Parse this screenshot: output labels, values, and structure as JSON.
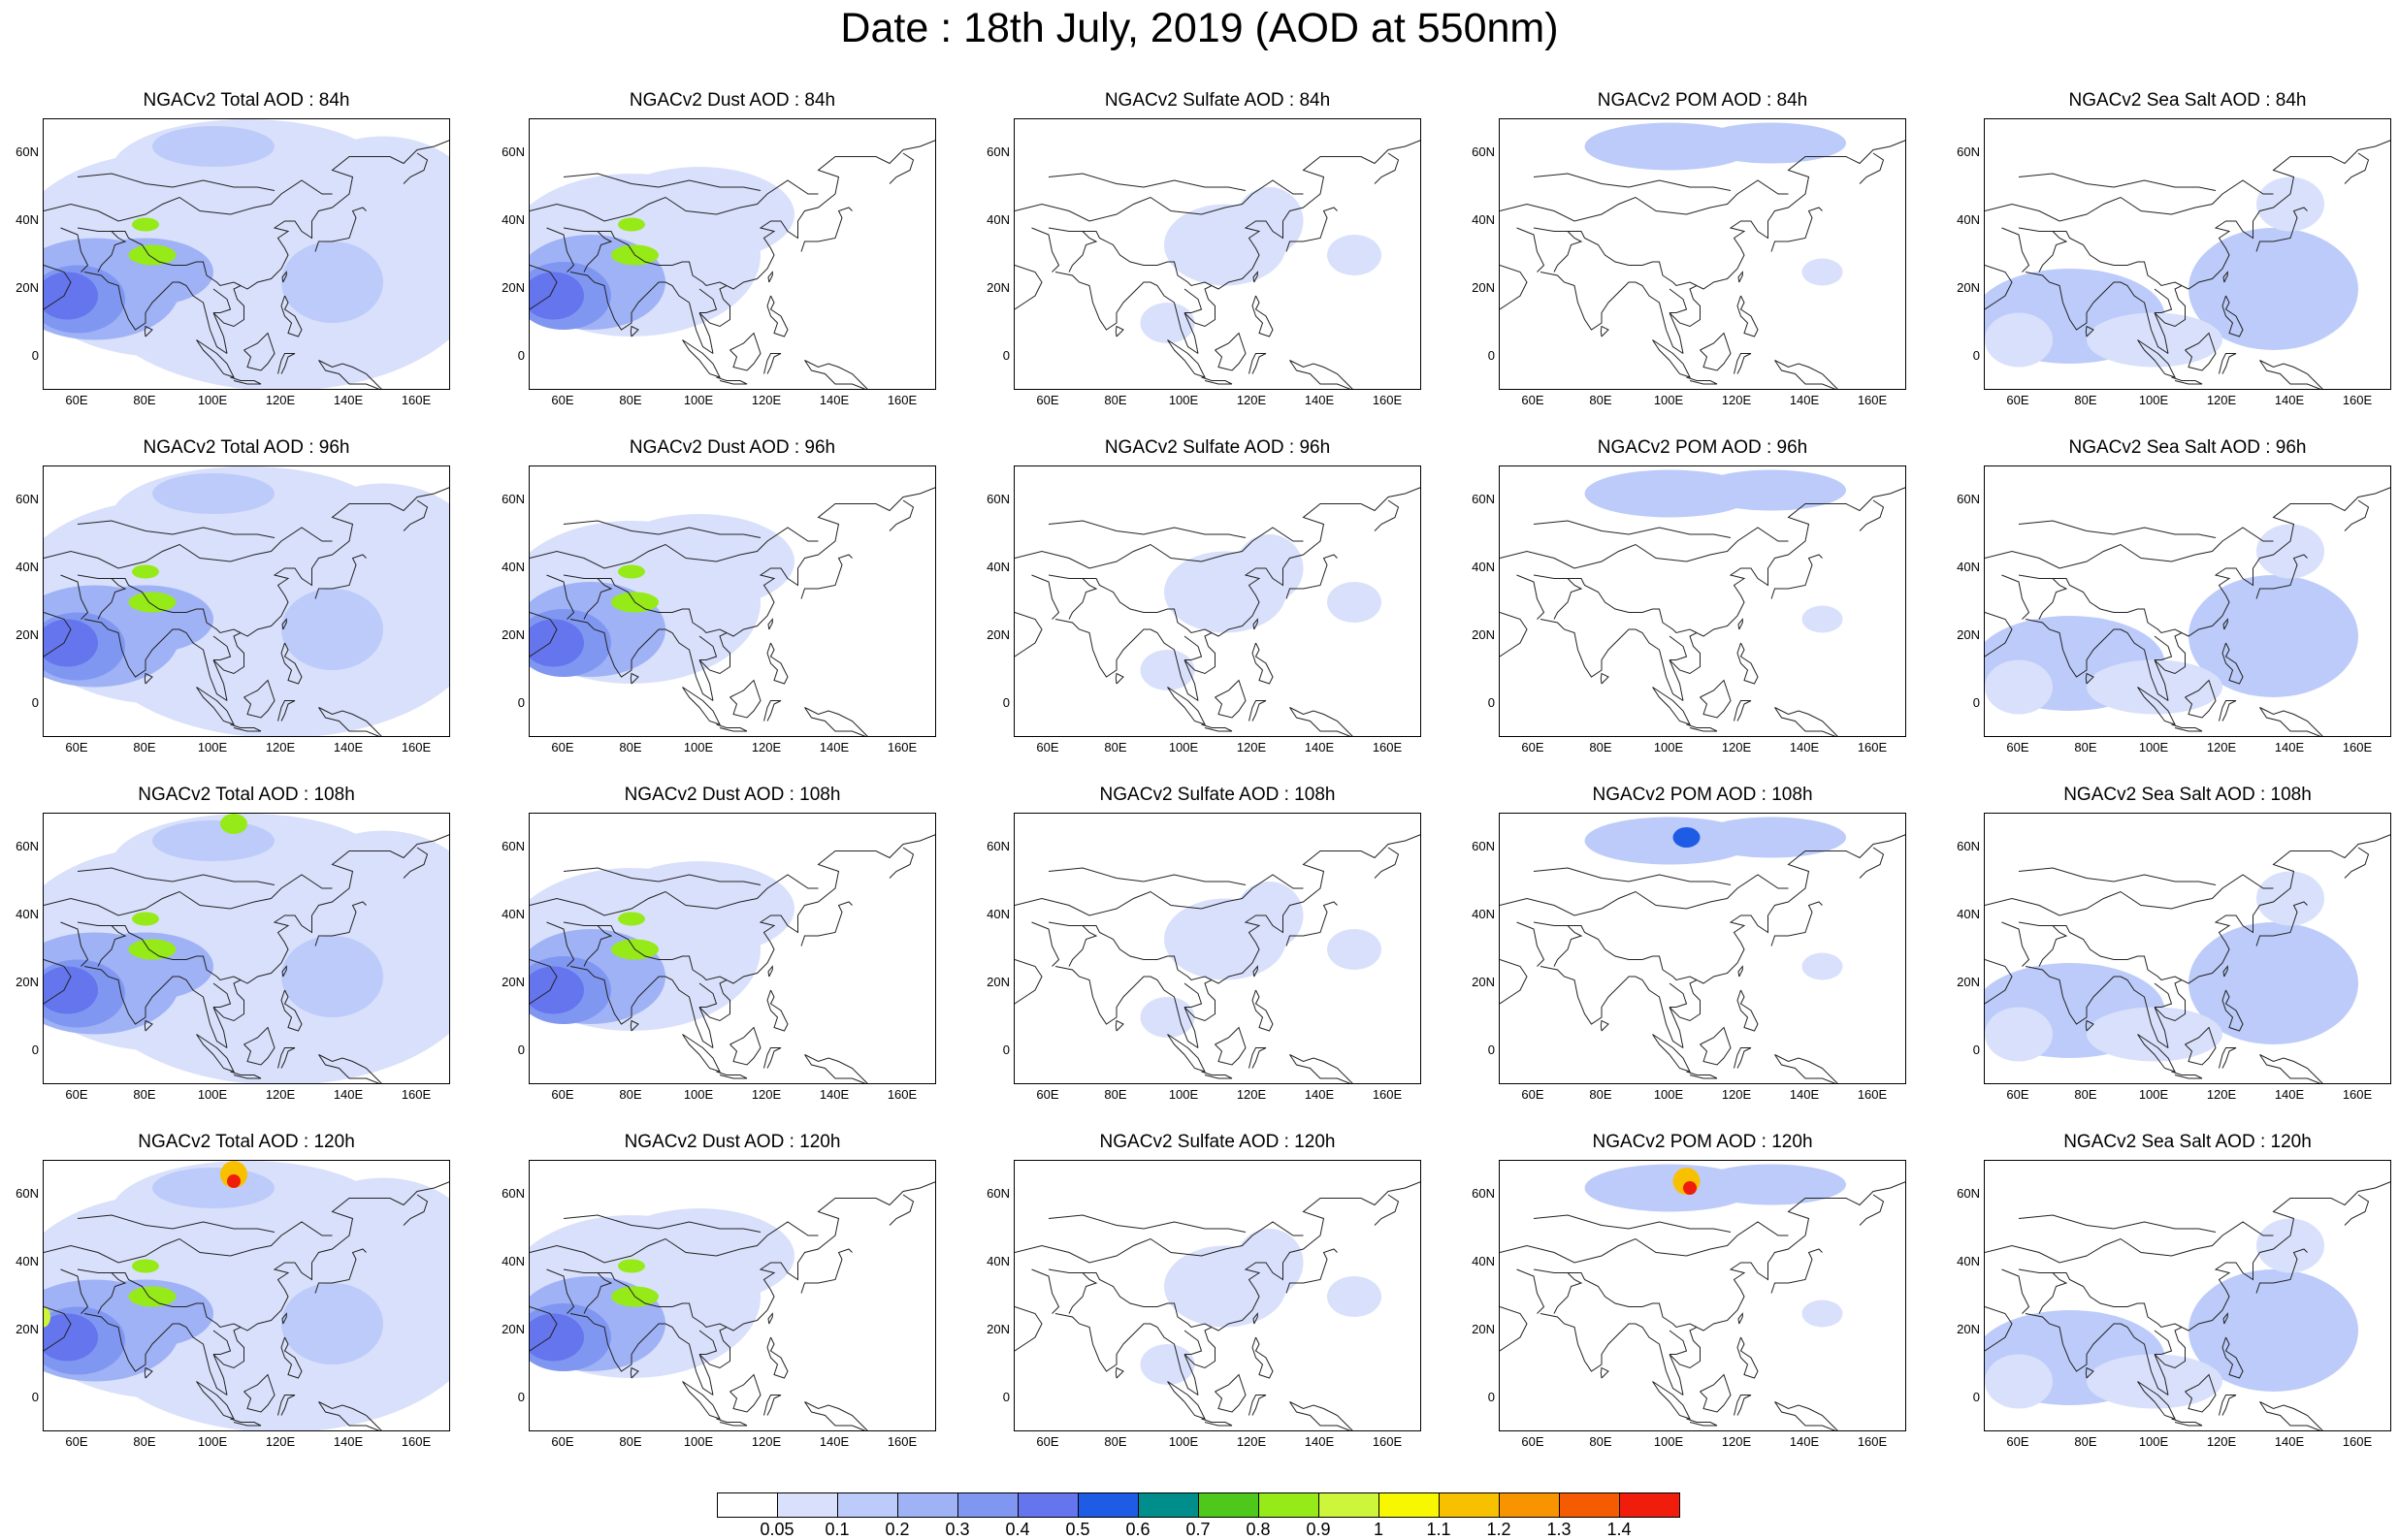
{
  "title": "Date : 18th July, 2019 (AOD at 550nm)",
  "axes": {
    "lat_ticks": [
      "60N",
      "40N",
      "20N",
      "0"
    ],
    "lon_ticks": [
      "60E",
      "80E",
      "100E",
      "120E",
      "140E",
      "160E"
    ]
  },
  "colorbar": {
    "colors": [
      "#ffffff",
      "#d9e0fb",
      "#bccbf9",
      "#9fb2f6",
      "#8097f2",
      "#6575ee",
      "#1f5ce6",
      "#008e8c",
      "#4ec81a",
      "#95ea18",
      "#cdf53a",
      "#f7f700",
      "#f8c100",
      "#f79400",
      "#f55b00",
      "#f01c0c"
    ],
    "labels": [
      "0.05",
      "0.1",
      "0.2",
      "0.3",
      "0.4",
      "0.5",
      "0.6",
      "0.7",
      "0.8",
      "0.9",
      "1",
      "1.1",
      "1.2",
      "1.3",
      "1.4"
    ]
  },
  "rows": [
    {
      "panels": [
        {
          "title": "NGACv2 Total AOD : 84h"
        },
        {
          "title": "NGACv2 Dust AOD : 84h"
        },
        {
          "title": "NGACv2 Sulfate AOD : 84h"
        },
        {
          "title": "NGACv2 POM AOD : 84h"
        },
        {
          "title": "NGACv2 Sea Salt AOD : 84h"
        }
      ]
    },
    {
      "panels": [
        {
          "title": "NGACv2 Total AOD : 96h"
        },
        {
          "title": "NGACv2 Dust AOD : 96h"
        },
        {
          "title": "NGACv2 Sulfate AOD : 96h"
        },
        {
          "title": "NGACv2 POM AOD : 96h"
        },
        {
          "title": "NGACv2 Sea Salt AOD : 96h"
        }
      ]
    },
    {
      "panels": [
        {
          "title": "NGACv2 Total AOD : 108h"
        },
        {
          "title": "NGACv2 Dust AOD : 108h"
        },
        {
          "title": "NGACv2 Sulfate AOD : 108h"
        },
        {
          "title": "NGACv2 POM AOD : 108h"
        },
        {
          "title": "NGACv2 Sea Salt AOD : 108h"
        }
      ]
    },
    {
      "panels": [
        {
          "title": "NGACv2 Total AOD : 120h"
        },
        {
          "title": "NGACv2 Dust AOD : 120h"
        },
        {
          "title": "NGACv2 Sulfate AOD : 120h"
        },
        {
          "title": "NGACv2 POM AOD : 120h"
        },
        {
          "title": "NGACv2 Sea Salt  AOD : 120h"
        }
      ]
    }
  ]
}
